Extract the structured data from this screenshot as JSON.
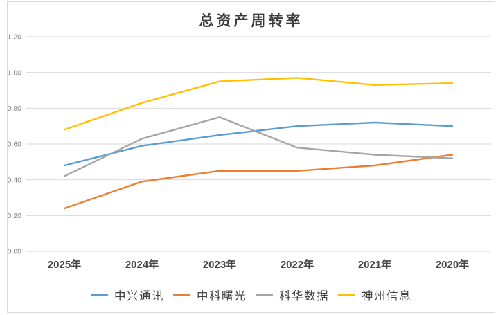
{
  "chart_data": {
    "type": "line",
    "title": "总资产周转率",
    "categories": [
      "2025年",
      "2024年",
      "2023年",
      "2022年",
      "2021年",
      "2020年"
    ],
    "series": [
      {
        "name": "中兴通讯",
        "color": "#5B9BD5",
        "values": [
          0.48,
          0.59,
          0.65,
          0.7,
          0.72,
          0.7
        ]
      },
      {
        "name": "中科曙光",
        "color": "#ED7D31",
        "values": [
          0.24,
          0.39,
          0.45,
          0.45,
          0.48,
          0.54
        ]
      },
      {
        "name": "科华数据",
        "color": "#A5A5A5",
        "values": [
          0.42,
          0.63,
          0.75,
          0.58,
          0.54,
          0.52
        ]
      },
      {
        "name": "神州信息",
        "color": "#FFC000",
        "values": [
          0.68,
          0.83,
          0.95,
          0.97,
          0.93,
          0.94
        ]
      }
    ],
    "xlabel": "",
    "ylabel": "",
    "ylim": [
      0.0,
      1.2
    ],
    "ytick_step": 0.2,
    "ytick_labels": [
      "1.20",
      "1.00",
      "0.80",
      "0.60",
      "0.40",
      "0.20",
      "0.00"
    ],
    "grid": true,
    "legend_position": "bottom",
    "colors": {
      "gridline": "#d9d9d9",
      "chart_border": "#d9d9d9",
      "title_text": "#3d3d3d",
      "axis_text_y": "#7f7f7f",
      "axis_text_x": "#464646",
      "legend_text": "#404040",
      "background": "#ffffff"
    }
  }
}
